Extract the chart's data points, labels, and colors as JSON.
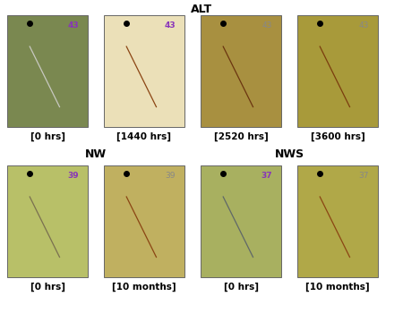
{
  "title_alt": "ALT",
  "title_nw": "NW",
  "title_nws": "NWS",
  "alt_labels": [
    "[0 hrs]",
    "[1440 hrs]",
    "[2520 hrs]",
    "[3600 hrs]"
  ],
  "nw_labels": [
    "[0 hrs]",
    "[10 months]"
  ],
  "nws_labels": [
    "[0 hrs]",
    "[10 months]"
  ],
  "panel_colors": {
    "alt_0": "#7a8850",
    "alt_1440": "#ebe0b8",
    "alt_2520": "#a89040",
    "alt_3600": "#a89a3a",
    "nw_0": "#b8c068",
    "nw_10m": "#c0b060",
    "nws_0": "#a8b060",
    "nws_10m": "#b0a848"
  },
  "scratch_colors": {
    "alt_0": "#c8c8c0",
    "alt_1440": "#8B4513",
    "alt_2520": "#6B3510",
    "alt_3600": "#7B3D0E",
    "nw_0": "#7a7050",
    "nw_10m": "#8B4513",
    "nws_0": "#606868",
    "nws_10m": "#8B4513"
  },
  "label_number_alt": "43",
  "label_number_nw": "39",
  "label_number_nws": "37",
  "bg_color": "#ffffff",
  "font_size_title": 9,
  "font_size_label": 7.5
}
